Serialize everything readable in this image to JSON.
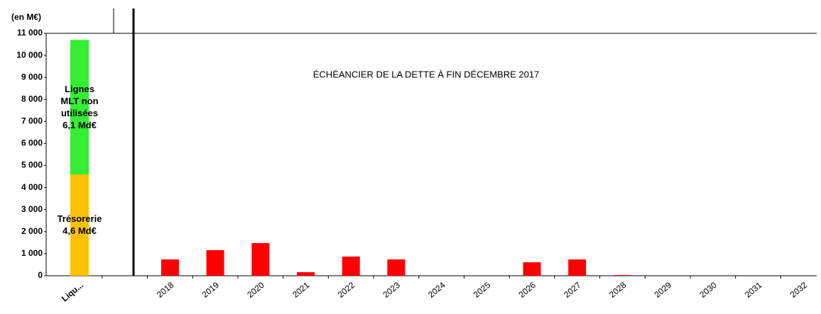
{
  "chart_data": {
    "type": "bar",
    "title": "ÉCHÉANCIER DE LA DETTE À FIN DÉCEMBRE 2017",
    "y_label": "(en M€)",
    "categories": [
      "Liqu...",
      null,
      "2018",
      "2019",
      "2020",
      "2021",
      "2022",
      "2023",
      "2024",
      "2025",
      "2026",
      "2027",
      "2028",
      "2029",
      "2030",
      "2031",
      "2032"
    ],
    "stacked": true,
    "series": [
      {
        "name": "Trésorerie",
        "color": "#ffc000",
        "values": [
          4600,
          null,
          null,
          null,
          null,
          null,
          null,
          null,
          null,
          null,
          null,
          null,
          null,
          null,
          null,
          null,
          null
        ],
        "value_labels": [
          "4,6 Md€",
          null,
          null,
          null,
          null,
          null,
          null,
          null,
          null,
          null,
          null,
          null,
          null,
          null,
          null,
          null,
          null
        ]
      },
      {
        "name": "Lignes MLT non utilisées",
        "color": "#33ee33",
        "values": [
          6100,
          null,
          null,
          null,
          null,
          null,
          null,
          null,
          null,
          null,
          null,
          null,
          null,
          null,
          null,
          null,
          null
        ],
        "value_labels": [
          "6,1 Md€",
          null,
          null,
          null,
          null,
          null,
          null,
          null,
          null,
          null,
          null,
          null,
          null,
          null,
          null,
          null,
          null
        ]
      },
      {
        "color": "#ff0000",
        "values": [
          null,
          null,
          740,
          1160,
          1480,
          160,
          870,
          740,
          0,
          0,
          610,
          740,
          30,
          0,
          0,
          0,
          0
        ]
      }
    ],
    "ylim": [
      0,
      11000
    ],
    "yticks": [
      0,
      {
        "value": 1000,
        "label": "1 000"
      },
      {
        "value": 2000,
        "label": "2 000"
      },
      {
        "value": 3000,
        "label": "3 000"
      },
      {
        "value": 4000,
        "label": "4 000"
      },
      {
        "value": 5000,
        "label": "5 000"
      },
      {
        "value": 6000,
        "label": "6 000"
      },
      {
        "value": 7000,
        "label": "7 000"
      },
      {
        "value": 8000,
        "label": "8 000"
      },
      {
        "value": 9000,
        "label": "9 000"
      },
      {
        "value": 10000,
        "label": "10 000"
      },
      {
        "value": 11000,
        "label": "11 000"
      }
    ],
    "grid": false
  }
}
